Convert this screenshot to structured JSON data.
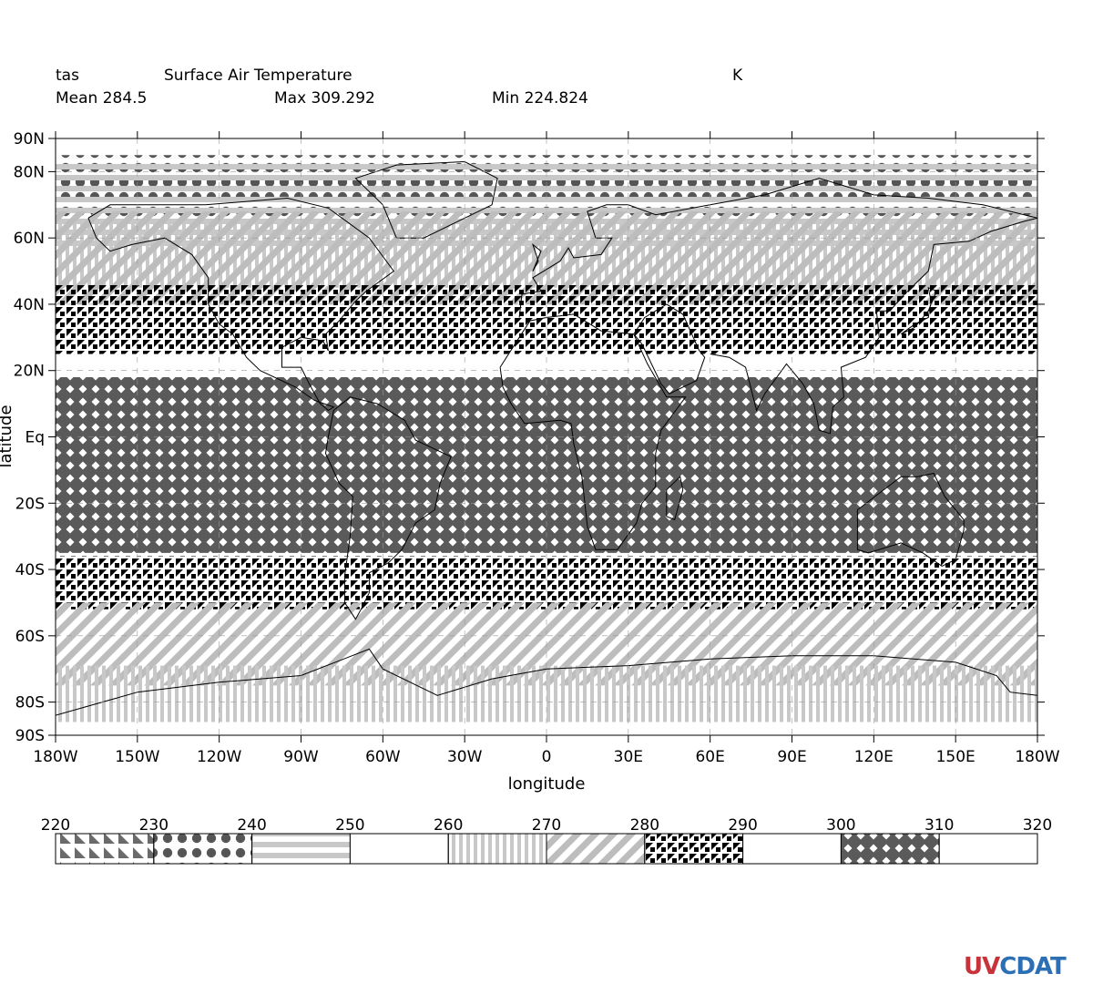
{
  "header": {
    "var_name": "tas",
    "long_name": "Surface Air Temperature",
    "units": "K",
    "mean": "Mean 284.5",
    "max": "Max 309.292",
    "min": "Min 224.824"
  },
  "axes": {
    "xlabel": "longitude",
    "ylabel": "latitude",
    "xticks": [
      {
        "value": -180,
        "label": "180W"
      },
      {
        "value": -150,
        "label": "150W"
      },
      {
        "value": -120,
        "label": "120W"
      },
      {
        "value": -90,
        "label": "90W"
      },
      {
        "value": -60,
        "label": "60W"
      },
      {
        "value": -30,
        "label": "30W"
      },
      {
        "value": 0,
        "label": "0"
      },
      {
        "value": 30,
        "label": "30E"
      },
      {
        "value": 60,
        "label": "60E"
      },
      {
        "value": 90,
        "label": "90E"
      },
      {
        "value": 120,
        "label": "120E"
      },
      {
        "value": 150,
        "label": "150E"
      },
      {
        "value": 180,
        "label": "180W"
      }
    ],
    "yticks": [
      {
        "value": 90,
        "label": "90N"
      },
      {
        "value": 80,
        "label": "80N"
      },
      {
        "value": 60,
        "label": "60N"
      },
      {
        "value": 40,
        "label": "40N"
      },
      {
        "value": 20,
        "label": "20N"
      },
      {
        "value": 0,
        "label": "Eq"
      },
      {
        "value": -20,
        "label": "20S"
      },
      {
        "value": -40,
        "label": "40S"
      },
      {
        "value": -60,
        "label": "60S"
      },
      {
        "value": -80,
        "label": "80S"
      },
      {
        "value": -90,
        "label": "90S"
      }
    ],
    "xlim": [
      -180,
      180
    ],
    "ylim": [
      -90,
      90
    ]
  },
  "legend": {
    "levels": [
      220,
      230,
      240,
      250,
      260,
      270,
      280,
      290,
      300,
      310,
      320
    ],
    "patterns": [
      "triangles",
      "dots",
      "hstripes",
      "blank",
      "vstripes",
      "diagonal",
      "blocks",
      "blank",
      "diamonds",
      "blank"
    ]
  },
  "chart_data": {
    "type": "heatmap",
    "projection": "cylindrical-equidistant",
    "units": "K",
    "xlim": [
      -180,
      180
    ],
    "ylim": [
      -90,
      90
    ],
    "levels": [
      220,
      230,
      240,
      250,
      260,
      270,
      280,
      290,
      300,
      310,
      320
    ],
    "bands": [
      {
        "range": [
          230,
          240
        ],
        "pattern": "dots",
        "lat_range": [
          66,
          85
        ]
      },
      {
        "range": [
          240,
          250
        ],
        "pattern": "hstripes",
        "lat_range": [
          57,
          84
        ]
      },
      {
        "range": [
          260,
          270
        ],
        "pattern": "vstripes",
        "lat_range": [
          45,
          65
        ]
      },
      {
        "range": [
          270,
          280
        ],
        "pattern": "diagonal",
        "lat_range": [
          40,
          68
        ]
      },
      {
        "range": [
          280,
          290
        ],
        "pattern": "blocks",
        "lat_range": [
          25,
          46
        ]
      },
      {
        "range": [
          300,
          310
        ],
        "pattern": "diamonds",
        "lat_range": [
          -35,
          18
        ]
      },
      {
        "range": [
          280,
          290
        ],
        "pattern": "blocks",
        "lat_range": [
          -52,
          -36
        ]
      },
      {
        "range": [
          270,
          280
        ],
        "pattern": "diagonal",
        "lat_range": [
          -75,
          -50
        ]
      },
      {
        "range": [
          260,
          270
        ],
        "pattern": "vstripes",
        "lat_range": [
          -86,
          -69
        ]
      }
    ]
  },
  "logo": {
    "part1": "UV",
    "part2": "CDAT"
  }
}
